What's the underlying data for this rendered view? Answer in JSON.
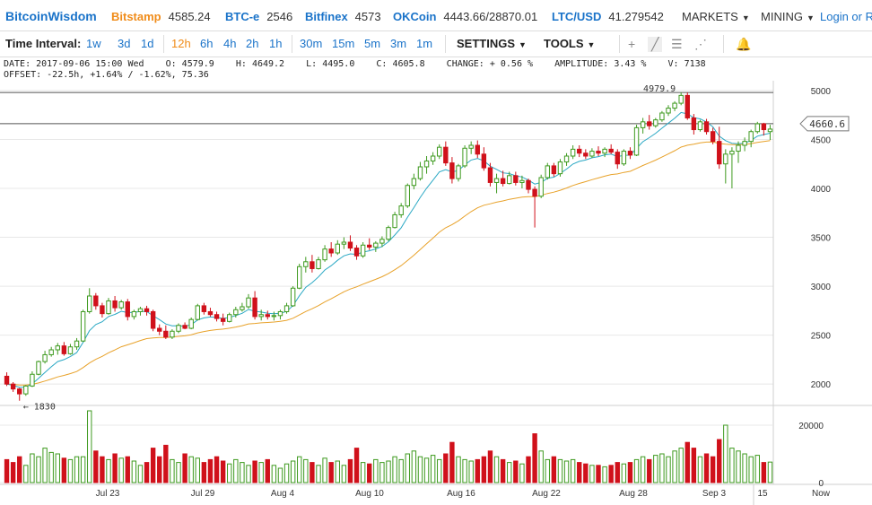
{
  "header": {
    "brand": "BitcoinWisdom",
    "tickers": [
      {
        "name": "Bitstamp",
        "value": "4585.24",
        "color": "#f08c1a"
      },
      {
        "name": "BTC-e",
        "value": "2546",
        "color": "#1a73c9"
      },
      {
        "name": "Bitfinex",
        "value": "4573",
        "color": "#1a73c9"
      },
      {
        "name": "OKCoin",
        "value": "4443.66/28870.01",
        "color": "#1a73c9"
      },
      {
        "name": "LTC/USD",
        "value": "41.279542",
        "color": "#1a73c9"
      }
    ],
    "markets_label": "MARKETS",
    "mining_label": "MINING",
    "login_text": "Login or Re"
  },
  "toolbar": {
    "label": "Time Interval:",
    "intervals": [
      "1w",
      "3d",
      "1d",
      "12h",
      "6h",
      "4h",
      "2h",
      "1h",
      "30m",
      "15m",
      "5m",
      "3m",
      "1m"
    ],
    "active_interval": "12h",
    "settings_label": "SETTINGS",
    "tools_label": "TOOLS",
    "tool_icons": [
      "crosshair-icon",
      "line-draw-icon",
      "fib-lines-icon",
      "fan-icon",
      "alert-bell-icon"
    ]
  },
  "info": {
    "line1": "DATE: 2017-09-06 15:00 Wed    O: 4579.9    H: 4649.2    L: 4495.0    C: 4605.8    CHANGE: + 0.56 %    AMPLITUDE: 3.43 %    V: 7138",
    "line2": "OFFSET: -22.5h, +1.64% / -1.62%, 75.36"
  },
  "colors": {
    "up": "#3e9a1f",
    "down": "#d0111b",
    "ema_fast": "#2aa8c4",
    "ema_slow": "#e8a22a",
    "grid": "#e8e8e8",
    "text": "#333333"
  },
  "chart_data": {
    "type": "candlestick",
    "interval": "12h",
    "price_axis": {
      "ticks": [
        2000,
        2500,
        3000,
        3500,
        4000,
        4500,
        5000
      ],
      "range": [
        1800,
        5100
      ]
    },
    "volume_axis": {
      "ticks": [
        0,
        20000
      ],
      "range": [
        0,
        25000
      ]
    },
    "x_ticks": [
      "Jul 23",
      "Jul 29",
      "Aug 4",
      "Aug 10",
      "Aug 16",
      "Aug 22",
      "Aug 28",
      "Sep 3",
      "15",
      "Now"
    ],
    "annotations": {
      "high_label": "4979.9",
      "low_label": "← 1830",
      "current_price": "4660.6"
    },
    "candles": [
      {
        "o": 2080,
        "h": 2120,
        "l": 1980,
        "c": 2000,
        "v": 8000
      },
      {
        "o": 2000,
        "h": 2020,
        "l": 1920,
        "c": 1950,
        "v": 7000
      },
      {
        "o": 1950,
        "h": 1960,
        "l": 1830,
        "c": 1900,
        "v": 9000
      },
      {
        "o": 1900,
        "h": 1990,
        "l": 1880,
        "c": 1980,
        "v": 6000
      },
      {
        "o": 1980,
        "h": 2130,
        "l": 1970,
        "c": 2100,
        "v": 10000
      },
      {
        "o": 2100,
        "h": 2240,
        "l": 2090,
        "c": 2230,
        "v": 9000
      },
      {
        "o": 2230,
        "h": 2340,
        "l": 2210,
        "c": 2300,
        "v": 12000
      },
      {
        "o": 2300,
        "h": 2380,
        "l": 2280,
        "c": 2350,
        "v": 10500
      },
      {
        "o": 2350,
        "h": 2420,
        "l": 2300,
        "c": 2390,
        "v": 10000
      },
      {
        "o": 2390,
        "h": 2430,
        "l": 2290,
        "c": 2310,
        "v": 8500
      },
      {
        "o": 2310,
        "h": 2410,
        "l": 2300,
        "c": 2380,
        "v": 8000
      },
      {
        "o": 2380,
        "h": 2470,
        "l": 2350,
        "c": 2440,
        "v": 9000
      },
      {
        "o": 2440,
        "h": 2760,
        "l": 2430,
        "c": 2740,
        "v": 9000
      },
      {
        "o": 2740,
        "h": 2980,
        "l": 2720,
        "c": 2900,
        "v": 25000
      },
      {
        "o": 2900,
        "h": 2930,
        "l": 2760,
        "c": 2800,
        "v": 11000
      },
      {
        "o": 2800,
        "h": 2830,
        "l": 2680,
        "c": 2720,
        "v": 9000
      },
      {
        "o": 2720,
        "h": 2880,
        "l": 2710,
        "c": 2850,
        "v": 8000
      },
      {
        "o": 2850,
        "h": 2900,
        "l": 2740,
        "c": 2780,
        "v": 10000
      },
      {
        "o": 2780,
        "h": 2860,
        "l": 2760,
        "c": 2840,
        "v": 8500
      },
      {
        "o": 2840,
        "h": 2870,
        "l": 2650,
        "c": 2690,
        "v": 9000
      },
      {
        "o": 2690,
        "h": 2760,
        "l": 2660,
        "c": 2740,
        "v": 7500
      },
      {
        "o": 2740,
        "h": 2790,
        "l": 2700,
        "c": 2770,
        "v": 6000
      },
      {
        "o": 2770,
        "h": 2800,
        "l": 2700,
        "c": 2740,
        "v": 7000
      },
      {
        "o": 2740,
        "h": 2760,
        "l": 2540,
        "c": 2570,
        "v": 12000
      },
      {
        "o": 2570,
        "h": 2610,
        "l": 2500,
        "c": 2540,
        "v": 9000
      },
      {
        "o": 2540,
        "h": 2600,
        "l": 2460,
        "c": 2480,
        "v": 13000
      },
      {
        "o": 2480,
        "h": 2560,
        "l": 2460,
        "c": 2540,
        "v": 8000
      },
      {
        "o": 2540,
        "h": 2620,
        "l": 2520,
        "c": 2600,
        "v": 7000
      },
      {
        "o": 2600,
        "h": 2630,
        "l": 2560,
        "c": 2570,
        "v": 10000
      },
      {
        "o": 2570,
        "h": 2680,
        "l": 2560,
        "c": 2660,
        "v": 9000
      },
      {
        "o": 2660,
        "h": 2820,
        "l": 2650,
        "c": 2800,
        "v": 8500
      },
      {
        "o": 2800,
        "h": 2830,
        "l": 2710,
        "c": 2740,
        "v": 7000
      },
      {
        "o": 2740,
        "h": 2780,
        "l": 2690,
        "c": 2710,
        "v": 8000
      },
      {
        "o": 2710,
        "h": 2740,
        "l": 2640,
        "c": 2670,
        "v": 9000
      },
      {
        "o": 2670,
        "h": 2720,
        "l": 2600,
        "c": 2640,
        "v": 7500
      },
      {
        "o": 2640,
        "h": 2730,
        "l": 2630,
        "c": 2710,
        "v": 6500
      },
      {
        "o": 2710,
        "h": 2790,
        "l": 2680,
        "c": 2760,
        "v": 8000
      },
      {
        "o": 2760,
        "h": 2830,
        "l": 2740,
        "c": 2790,
        "v": 7000
      },
      {
        "o": 2790,
        "h": 2920,
        "l": 2770,
        "c": 2880,
        "v": 6000
      },
      {
        "o": 2880,
        "h": 2950,
        "l": 2660,
        "c": 2690,
        "v": 7500
      },
      {
        "o": 2690,
        "h": 2760,
        "l": 2650,
        "c": 2710,
        "v": 7000
      },
      {
        "o": 2710,
        "h": 2750,
        "l": 2660,
        "c": 2690,
        "v": 8000
      },
      {
        "o": 2690,
        "h": 2740,
        "l": 2650,
        "c": 2700,
        "v": 6000
      },
      {
        "o": 2700,
        "h": 2760,
        "l": 2660,
        "c": 2740,
        "v": 5000
      },
      {
        "o": 2740,
        "h": 2830,
        "l": 2720,
        "c": 2800,
        "v": 6500
      },
      {
        "o": 2800,
        "h": 3000,
        "l": 2790,
        "c": 2980,
        "v": 7500
      },
      {
        "o": 2980,
        "h": 3230,
        "l": 2970,
        "c": 3200,
        "v": 9000
      },
      {
        "o": 3200,
        "h": 3300,
        "l": 3140,
        "c": 3250,
        "v": 8000
      },
      {
        "o": 3250,
        "h": 3320,
        "l": 3140,
        "c": 3180,
        "v": 7000
      },
      {
        "o": 3180,
        "h": 3300,
        "l": 3170,
        "c": 3270,
        "v": 6000
      },
      {
        "o": 3270,
        "h": 3420,
        "l": 3250,
        "c": 3380,
        "v": 8500
      },
      {
        "o": 3380,
        "h": 3450,
        "l": 3300,
        "c": 3340,
        "v": 7000
      },
      {
        "o": 3340,
        "h": 3470,
        "l": 3320,
        "c": 3430,
        "v": 7500
      },
      {
        "o": 3430,
        "h": 3500,
        "l": 3380,
        "c": 3450,
        "v": 6000
      },
      {
        "o": 3450,
        "h": 3520,
        "l": 3360,
        "c": 3390,
        "v": 8000
      },
      {
        "o": 3390,
        "h": 3420,
        "l": 3270,
        "c": 3310,
        "v": 12000
      },
      {
        "o": 3310,
        "h": 3450,
        "l": 3290,
        "c": 3420,
        "v": 7000
      },
      {
        "o": 3420,
        "h": 3490,
        "l": 3370,
        "c": 3400,
        "v": 6500
      },
      {
        "o": 3400,
        "h": 3460,
        "l": 3350,
        "c": 3440,
        "v": 8000
      },
      {
        "o": 3440,
        "h": 3510,
        "l": 3400,
        "c": 3480,
        "v": 7000
      },
      {
        "o": 3480,
        "h": 3620,
        "l": 3460,
        "c": 3600,
        "v": 7500
      },
      {
        "o": 3600,
        "h": 3760,
        "l": 3590,
        "c": 3730,
        "v": 9000
      },
      {
        "o": 3730,
        "h": 3850,
        "l": 3700,
        "c": 3820,
        "v": 8000
      },
      {
        "o": 3820,
        "h": 4050,
        "l": 3800,
        "c": 4030,
        "v": 10000
      },
      {
        "o": 4030,
        "h": 4150,
        "l": 3990,
        "c": 4100,
        "v": 11000
      },
      {
        "o": 4100,
        "h": 4270,
        "l": 4080,
        "c": 4220,
        "v": 9000
      },
      {
        "o": 4220,
        "h": 4330,
        "l": 4150,
        "c": 4280,
        "v": 8500
      },
      {
        "o": 4280,
        "h": 4370,
        "l": 4240,
        "c": 4330,
        "v": 9500
      },
      {
        "o": 4330,
        "h": 4450,
        "l": 4300,
        "c": 4420,
        "v": 8000
      },
      {
        "o": 4420,
        "h": 4480,
        "l": 4230,
        "c": 4260,
        "v": 10000
      },
      {
        "o": 4260,
        "h": 4320,
        "l": 4050,
        "c": 4100,
        "v": 14000
      },
      {
        "o": 4100,
        "h": 4250,
        "l": 4070,
        "c": 4230,
        "v": 9000
      },
      {
        "o": 4230,
        "h": 4440,
        "l": 4210,
        "c": 4410,
        "v": 8000
      },
      {
        "o": 4410,
        "h": 4480,
        "l": 4350,
        "c": 4440,
        "v": 7500
      },
      {
        "o": 4440,
        "h": 4490,
        "l": 4310,
        "c": 4350,
        "v": 8000
      },
      {
        "o": 4350,
        "h": 4420,
        "l": 4180,
        "c": 4210,
        "v": 9000
      },
      {
        "o": 4210,
        "h": 4260,
        "l": 4020,
        "c": 4060,
        "v": 11000
      },
      {
        "o": 4060,
        "h": 4150,
        "l": 3950,
        "c": 4100,
        "v": 9000
      },
      {
        "o": 4100,
        "h": 4180,
        "l": 4020,
        "c": 4050,
        "v": 8000
      },
      {
        "o": 4050,
        "h": 4170,
        "l": 4040,
        "c": 4130,
        "v": 7000
      },
      {
        "o": 4130,
        "h": 4170,
        "l": 4030,
        "c": 4060,
        "v": 7500
      },
      {
        "o": 4060,
        "h": 4130,
        "l": 4000,
        "c": 4080,
        "v": 6500
      },
      {
        "o": 4080,
        "h": 4100,
        "l": 3950,
        "c": 3990,
        "v": 9000
      },
      {
        "o": 3990,
        "h": 4020,
        "l": 3600,
        "c": 3920,
        "v": 17000
      },
      {
        "o": 3920,
        "h": 4140,
        "l": 3900,
        "c": 4110,
        "v": 11000
      },
      {
        "o": 4110,
        "h": 4260,
        "l": 4090,
        "c": 4230,
        "v": 8000
      },
      {
        "o": 4230,
        "h": 4260,
        "l": 4120,
        "c": 4150,
        "v": 9000
      },
      {
        "o": 4150,
        "h": 4300,
        "l": 4120,
        "c": 4270,
        "v": 8000
      },
      {
        "o": 4270,
        "h": 4360,
        "l": 4230,
        "c": 4330,
        "v": 7500
      },
      {
        "o": 4330,
        "h": 4440,
        "l": 4300,
        "c": 4400,
        "v": 8000
      },
      {
        "o": 4400,
        "h": 4440,
        "l": 4320,
        "c": 4360,
        "v": 7000
      },
      {
        "o": 4360,
        "h": 4400,
        "l": 4300,
        "c": 4330,
        "v": 6500
      },
      {
        "o": 4330,
        "h": 4410,
        "l": 4310,
        "c": 4380,
        "v": 6000
      },
      {
        "o": 4380,
        "h": 4430,
        "l": 4330,
        "c": 4360,
        "v": 6000
      },
      {
        "o": 4360,
        "h": 4420,
        "l": 4320,
        "c": 4400,
        "v": 5500
      },
      {
        "o": 4400,
        "h": 4450,
        "l": 4350,
        "c": 4370,
        "v": 6000
      },
      {
        "o": 4370,
        "h": 4400,
        "l": 4200,
        "c": 4250,
        "v": 7000
      },
      {
        "o": 4250,
        "h": 4400,
        "l": 4230,
        "c": 4380,
        "v": 6500
      },
      {
        "o": 4380,
        "h": 4420,
        "l": 4300,
        "c": 4340,
        "v": 7000
      },
      {
        "o": 4340,
        "h": 4650,
        "l": 4330,
        "c": 4620,
        "v": 8000
      },
      {
        "o": 4620,
        "h": 4720,
        "l": 4560,
        "c": 4680,
        "v": 9000
      },
      {
        "o": 4680,
        "h": 4750,
        "l": 4600,
        "c": 4640,
        "v": 8000
      },
      {
        "o": 4640,
        "h": 4720,
        "l": 4620,
        "c": 4700,
        "v": 9500
      },
      {
        "o": 4700,
        "h": 4790,
        "l": 4680,
        "c": 4770,
        "v": 10000
      },
      {
        "o": 4770,
        "h": 4850,
        "l": 4740,
        "c": 4820,
        "v": 9000
      },
      {
        "o": 4820,
        "h": 4890,
        "l": 4790,
        "c": 4870,
        "v": 11000
      },
      {
        "o": 4870,
        "h": 4980,
        "l": 4850,
        "c": 4950,
        "v": 12000
      },
      {
        "o": 4950,
        "h": 4979.9,
        "l": 4700,
        "c": 4720,
        "v": 14000
      },
      {
        "o": 4720,
        "h": 4760,
        "l": 4550,
        "c": 4600,
        "v": 12000
      },
      {
        "o": 4600,
        "h": 4700,
        "l": 4580,
        "c": 4680,
        "v": 9000
      },
      {
        "o": 4680,
        "h": 4710,
        "l": 4550,
        "c": 4580,
        "v": 10000
      },
      {
        "o": 4580,
        "h": 4620,
        "l": 4450,
        "c": 4480,
        "v": 9000
      },
      {
        "o": 4480,
        "h": 4630,
        "l": 4200,
        "c": 4250,
        "v": 15000
      },
      {
        "o": 4250,
        "h": 4400,
        "l": 4050,
        "c": 4350,
        "v": 20000
      },
      {
        "o": 4350,
        "h": 4420,
        "l": 4000,
        "c": 4380,
        "v": 12000
      },
      {
        "o": 4380,
        "h": 4480,
        "l": 4260,
        "c": 4440,
        "v": 11000
      },
      {
        "o": 4440,
        "h": 4520,
        "l": 4380,
        "c": 4480,
        "v": 10000
      },
      {
        "o": 4480,
        "h": 4600,
        "l": 4420,
        "c": 4580,
        "v": 9000
      },
      {
        "o": 4580,
        "h": 4680,
        "l": 4560,
        "c": 4660,
        "v": 9500
      },
      {
        "o": 4660,
        "h": 4670,
        "l": 4540,
        "c": 4600,
        "v": 7000
      },
      {
        "o": 4579.9,
        "h": 4649.2,
        "l": 4495,
        "c": 4605.8,
        "v": 7138
      }
    ]
  }
}
